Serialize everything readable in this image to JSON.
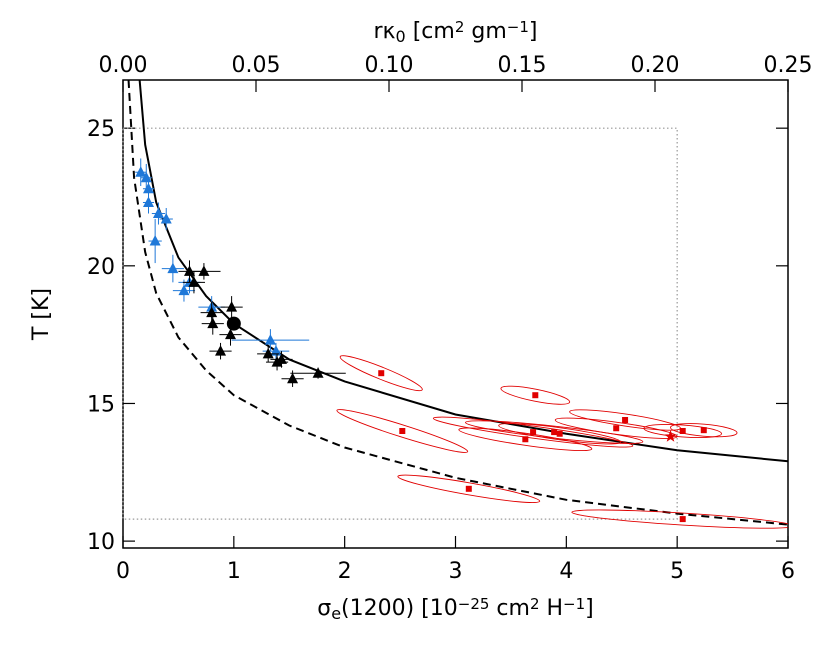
{
  "chart_data": {
    "type": "scatter",
    "xlim": [
      0,
      6
    ],
    "ylim": [
      9.75,
      26.75
    ],
    "x2lim": [
      0,
      0.25
    ],
    "xticks": [
      0,
      1,
      2,
      3,
      4,
      5,
      6
    ],
    "yticks": [
      10,
      15,
      20,
      25
    ],
    "x2ticks": [
      {
        "value": 0,
        "label": "0.00"
      },
      {
        "value": 0.05,
        "label": "0.05"
      },
      {
        "value": 0.1,
        "label": "0.10"
      },
      {
        "value": 0.15,
        "label": "0.15"
      },
      {
        "value": 0.2,
        "label": "0.20"
      },
      {
        "value": 0.25,
        "label": "0.25"
      }
    ],
    "xlabel": [
      {
        "text": "σ"
      },
      {
        "text": "e",
        "sub": true
      },
      {
        "text": "(1200)  [10"
      },
      {
        "text": "−25",
        "sup": true
      },
      {
        "text": " cm"
      },
      {
        "text": "2",
        "sup": true
      },
      {
        "text": " H"
      },
      {
        "text": "−1",
        "sup": true
      },
      {
        "text": "]"
      }
    ],
    "x2label": [
      {
        "text": "rκ"
      },
      {
        "text": "0",
        "sub": true
      },
      {
        "text": " [cm"
      },
      {
        "text": "2",
        "sup": true
      },
      {
        "text": " gm"
      },
      {
        "text": "−1",
        "sup": true
      },
      {
        "text": "]"
      }
    ],
    "ylabel": "T [K]",
    "box": {
      "x": [
        0,
        5
      ],
      "y": [
        10.8,
        25
      ]
    },
    "lines": [
      {
        "style": "solid",
        "color": "#000000",
        "x": [
          0.15,
          0.2,
          0.3,
          0.5,
          0.75,
          1,
          1.5,
          2,
          3,
          4,
          5,
          6
        ],
        "values": [
          26.75,
          24.4,
          22.3,
          20.3,
          18.9,
          17.9,
          16.6,
          15.8,
          14.6,
          13.9,
          13.3,
          12.9
        ]
      },
      {
        "style": "dashed",
        "color": "#000000",
        "x": [
          0.05,
          0.1,
          0.2,
          0.3,
          0.5,
          0.75,
          1,
          1.5,
          2,
          3,
          4,
          5,
          6
        ],
        "values": [
          26.75,
          23.2,
          20.5,
          19.0,
          17.4,
          16.2,
          15.3,
          14.2,
          13.4,
          12.3,
          11.5,
          11.0,
          10.6
        ]
      }
    ],
    "series": [
      {
        "marker": "triangle",
        "color": "#1f78d8",
        "x": [
          0.16,
          0.21,
          0.23,
          0.23,
          0.32,
          0.39,
          0.29,
          0.45,
          0.55,
          0.6,
          0.8,
          1.33,
          1.38
        ],
        "values": [
          23.4,
          23.2,
          22.8,
          22.3,
          21.9,
          21.7,
          20.9,
          19.9,
          19.1,
          19.4,
          18.5,
          17.3,
          16.9
        ],
        "xerr": [
          0.05,
          0.05,
          0.05,
          0.05,
          0.06,
          0.06,
          0.06,
          0.1,
          0.1,
          0.1,
          0.12,
          0.35,
          0.12
        ],
        "yerr": [
          0.5,
          0.5,
          0.4,
          0.4,
          0.4,
          0.4,
          0.8,
          0.5,
          0.4,
          0.4,
          0.4,
          0.4,
          0.3
        ]
      },
      {
        "marker": "triangle",
        "color": "#000000",
        "x": [
          0.6,
          0.64,
          0.73,
          0.8,
          0.81,
          0.88,
          0.98,
          0.97,
          1.31,
          1.39,
          1.43,
          1.53,
          1.76
        ],
        "values": [
          19.8,
          19.4,
          19.8,
          18.3,
          17.9,
          16.9,
          18.5,
          17.5,
          16.8,
          16.5,
          16.6,
          15.9,
          16.1
        ],
        "xerr": [
          0.1,
          0.1,
          0.15,
          0.1,
          0.1,
          0.1,
          0.1,
          0.1,
          0.1,
          0.1,
          0.1,
          0.1,
          0.25
        ],
        "yerr": [
          0.4,
          0.4,
          0.3,
          0.4,
          0.4,
          0.3,
          0.4,
          0.4,
          0.3,
          0.3,
          0.3,
          0.3,
          0.2
        ]
      },
      {
        "marker": "circle",
        "color": "#000000",
        "x": [
          1
        ],
        "values": [
          17.9
        ]
      },
      {
        "marker": "square",
        "color": "#e00000",
        "x": [
          2.33,
          2.52,
          3.72,
          3.7,
          3.63,
          3.89,
          3.94,
          4.45,
          4.53,
          5.05,
          5.24,
          3.12,
          5.05
        ],
        "values": [
          16.1,
          14.0,
          15.3,
          13.96,
          13.7,
          13.96,
          13.9,
          14.1,
          14.4,
          14.0,
          14.03,
          11.9,
          10.8
        ],
        "ellipse_dx": [
          0.37,
          0.59,
          0.31,
          0.9,
          0.6,
          0.8,
          0.55,
          0.55,
          0.5,
          0.35,
          0.3,
          0.64,
          1.0
        ],
        "ellipse_dy": [
          0.6,
          0.75,
          0.25,
          0.5,
          0.35,
          0.35,
          0.3,
          0.3,
          0.3,
          0.1,
          0.1,
          0.45,
          0.25
        ]
      },
      {
        "marker": "star",
        "color": "#e00000",
        "x": [
          4.94
        ],
        "values": [
          13.8
        ]
      }
    ]
  }
}
